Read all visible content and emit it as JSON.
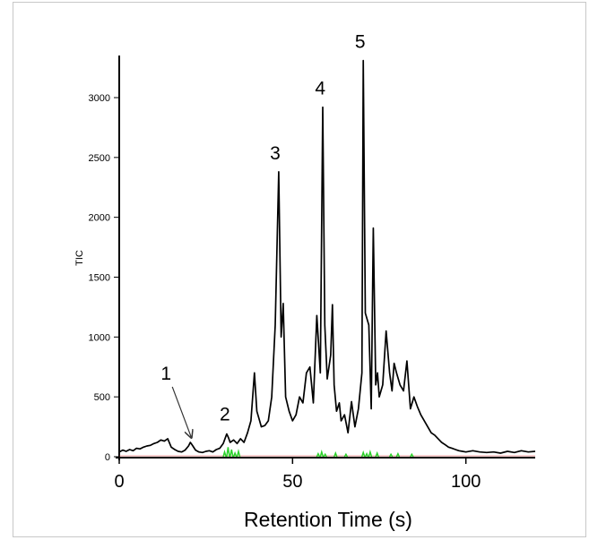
{
  "chart_data": {
    "type": "line",
    "xlabel": "Retention Time (s)",
    "ylabel": "TIC",
    "xlim": [
      0,
      120
    ],
    "ylim": [
      0,
      3300
    ],
    "xticks": [
      0,
      50,
      100
    ],
    "yticks": [
      0,
      500,
      1000,
      1500,
      2000,
      2500,
      3000
    ],
    "x_tick_labels": [
      "0",
      "50",
      "100"
    ],
    "y_tick_labels": [
      "0",
      "500",
      "1000",
      "1500",
      "2000",
      "2500",
      "3000"
    ],
    "grid": false,
    "colors": {
      "tic": "#000000",
      "trace_green": "#2bd12b",
      "trace_red": "#e05050",
      "axis": "#000000"
    },
    "series": [
      {
        "name": "",
        "x": [
          0,
          1,
          2,
          3,
          4,
          5,
          6,
          7,
          8,
          9,
          10,
          11,
          12,
          13,
          14,
          15,
          16,
          17,
          18,
          19,
          20,
          20.5,
          21,
          22,
          23,
          24,
          25,
          26,
          27,
          28,
          29,
          30,
          31,
          31.5,
          32,
          33,
          34,
          35,
          36,
          37,
          38,
          39,
          39.7,
          40.5,
          41,
          42,
          43,
          44,
          45,
          46,
          46.7,
          47.3,
          48,
          49,
          50,
          51,
          52,
          53,
          54,
          55,
          56,
          57,
          58,
          58.7,
          59.3,
          60,
          61,
          61.5,
          62,
          62.7,
          63.5,
          64,
          65,
          66,
          67,
          68,
          69,
          70,
          70.4,
          71,
          72,
          72.7,
          73.3,
          74,
          74.5,
          75,
          76,
          77,
          78,
          78.7,
          79.3,
          80,
          81,
          82,
          83,
          84,
          85,
          86,
          87,
          88,
          89,
          90,
          91,
          92,
          93,
          94,
          95,
          96,
          97,
          98,
          99,
          100,
          102,
          104,
          106,
          108,
          110,
          112,
          114,
          116,
          118,
          120
        ],
        "values": [
          40,
          55,
          45,
          60,
          50,
          70,
          65,
          80,
          90,
          95,
          110,
          120,
          140,
          130,
          150,
          80,
          60,
          45,
          40,
          55,
          90,
          120,
          100,
          55,
          40,
          35,
          45,
          50,
          40,
          60,
          70,
          110,
          190,
          160,
          120,
          140,
          110,
          150,
          120,
          200,
          300,
          700,
          380,
          300,
          250,
          260,
          300,
          500,
          1100,
          2380,
          1000,
          1280,
          500,
          380,
          300,
          350,
          500,
          450,
          700,
          750,
          450,
          1180,
          700,
          2920,
          1100,
          650,
          850,
          1270,
          600,
          380,
          450,
          300,
          350,
          200,
          460,
          250,
          400,
          700,
          3310,
          1200,
          1100,
          400,
          1910,
          600,
          700,
          500,
          600,
          1050,
          700,
          550,
          780,
          700,
          600,
          550,
          800,
          400,
          500,
          420,
          350,
          300,
          250,
          200,
          180,
          150,
          120,
          100,
          80,
          70,
          60,
          50,
          45,
          40,
          50,
          40,
          35,
          40,
          30,
          45,
          35,
          50,
          40,
          45
        ]
      }
    ],
    "annotations": [
      {
        "text": "1",
        "x": 21,
        "y": 120,
        "arrow": true
      },
      {
        "text": "2",
        "x": 31,
        "y": 200
      },
      {
        "text": "3",
        "x": 45.5,
        "y": 2380
      },
      {
        "text": "4",
        "x": 58.5,
        "y": 2920
      },
      {
        "text": "5",
        "x": 70,
        "y": 3310
      }
    ]
  }
}
